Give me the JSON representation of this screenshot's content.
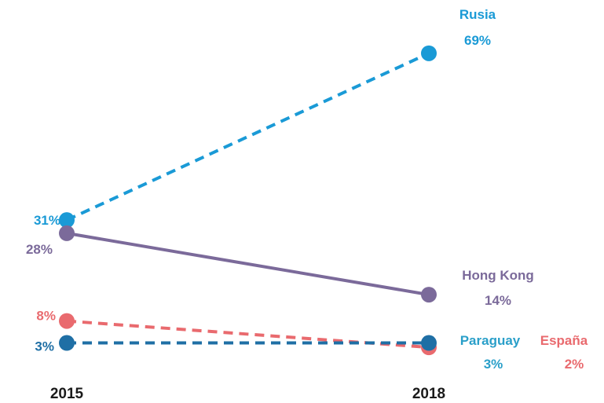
{
  "chart_data": {
    "type": "line",
    "title": "",
    "xlabel": "",
    "ylabel": "",
    "categories": [
      "2015",
      "2018"
    ],
    "ylim": [
      0,
      70
    ],
    "grid": false,
    "legend": "none",
    "series": [
      {
        "name": "Rusia",
        "values": [
          31,
          69
        ],
        "value_labels": [
          "31%",
          "69%"
        ],
        "color": "#1a9ad6",
        "dashed": true
      },
      {
        "name": "Hong Kong",
        "values": [
          28,
          14
        ],
        "value_labels": [
          "28%",
          "14%"
        ],
        "color": "#7b6a9a",
        "dashed": false
      },
      {
        "name": "España",
        "values": [
          8,
          2
        ],
        "value_labels": [
          "8%",
          "2%"
        ],
        "color": "#e96a6e",
        "dashed": true
      },
      {
        "name": "Paraguay",
        "values": [
          3,
          3
        ],
        "value_labels": [
          "3%",
          "3%"
        ],
        "color": "#1f6fa5",
        "dashed": true
      }
    ],
    "label_colors": {
      "Paraguay": "#2a9fc9",
      "default": "same-as-series"
    }
  }
}
